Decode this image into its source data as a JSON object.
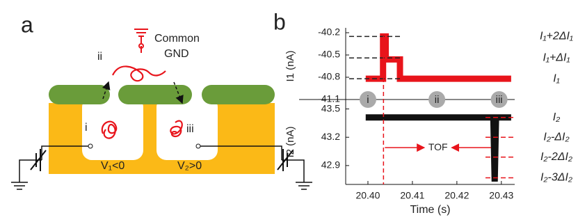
{
  "panel_a": {
    "label": "a",
    "common": "Common",
    "gnd": "GND",
    "pore_labels": [
      "i",
      "ii",
      "iii"
    ],
    "v1": "V₁<0",
    "v2": "V₂>0"
  },
  "panel_b": {
    "label": "b"
  },
  "chart_data": [
    {
      "type": "line",
      "ylabel": "I1 (nA)",
      "ylim": [
        -41.1,
        -40.2
      ],
      "yticks": [
        -41.1,
        -40.8,
        -40.5,
        -40.2
      ],
      "series": [
        {
          "color": "#e8141b",
          "x": [
            20.3995,
            20.4034,
            20.4034,
            20.404,
            20.404,
            20.4072,
            20.4072,
            20.4322
          ],
          "values": [
            -40.82,
            -40.82,
            -40.25,
            -40.25,
            -40.56,
            -40.56,
            -40.82,
            -40.82
          ]
        }
      ],
      "reference_color": "#222",
      "reference_lines": [
        {
          "value": -40.25,
          "label": "I₁+2ΔI₁"
        },
        {
          "value": -40.54,
          "label": "I₁+ΔI₁"
        },
        {
          "value": -40.82,
          "label": "I₁"
        }
      ],
      "markers": [
        {
          "label": "i",
          "x": 20.4
        },
        {
          "label": "ii",
          "x": 20.4155
        },
        {
          "label": "iii",
          "x": 20.4295
        }
      ]
    },
    {
      "type": "line",
      "ylabel": "I2 (nA)",
      "xlabel": "Time (s)",
      "ylim": [
        42.7,
        43.6
      ],
      "yticks": [
        43.5,
        43.2,
        42.9
      ],
      "xlim": [
        20.395,
        20.433
      ],
      "xticks": [
        {
          "value": 20.4,
          "label": "20.40"
        },
        20.41,
        20.42,
        20.43
      ],
      "series": [
        {
          "color": "#111",
          "x": [
            20.3995,
            20.4282,
            20.4285,
            20.4288,
            20.4322
          ],
          "values": [
            43.41,
            43.41,
            42.73,
            43.41,
            43.41
          ]
        }
      ],
      "reference_color": "#e8141b",
      "reference_lines": [
        {
          "value": 43.41,
          "label": "I₂"
        },
        {
          "value": 43.2,
          "label": "I₂-ΔI₂"
        },
        {
          "value": 42.99,
          "label": "I₂-2ΔI₂"
        },
        {
          "value": 42.77,
          "label": "I₂-3ΔI₂"
        }
      ],
      "event_x": 20.4035,
      "annotation": {
        "text": "TOF",
        "x": [
          20.4035,
          20.428
        ],
        "y": 43.09
      }
    }
  ]
}
